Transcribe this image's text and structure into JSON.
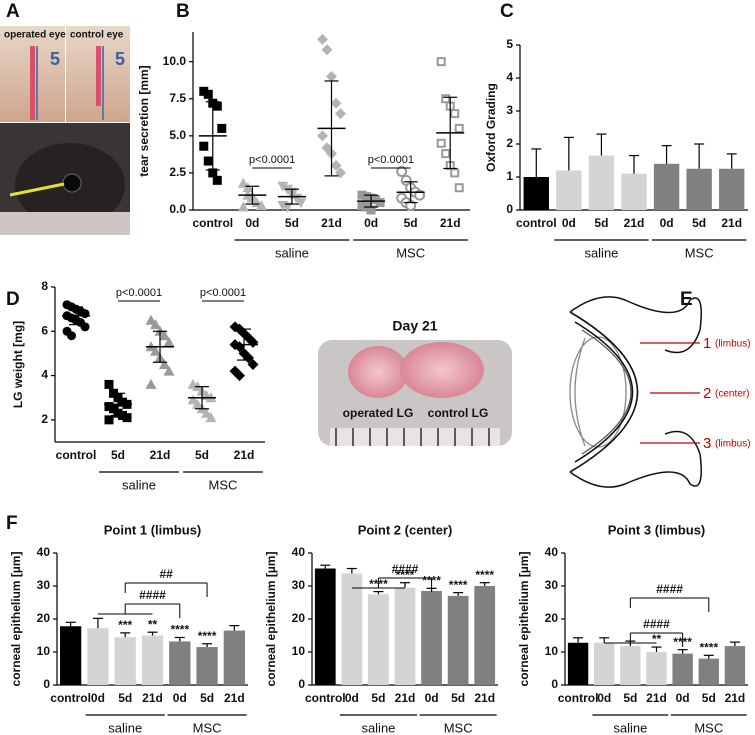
{
  "panel_labels": [
    "A",
    "B",
    "C",
    "D",
    "E",
    "F"
  ],
  "photo_a": {
    "labels": [
      "operated eye",
      "control eye"
    ],
    "strip_mark": "5"
  },
  "photo_d": {
    "title": "Day 21",
    "labels": [
      "operated LG",
      "control LG"
    ]
  },
  "diagram_e": {
    "points": [
      {
        "number": "1",
        "label": "(limbus)"
      },
      {
        "number": "2",
        "label": "(center)"
      },
      {
        "number": "3",
        "label": "(limbus)"
      }
    ]
  },
  "chart_data": [
    {
      "type": "scatter",
      "ylabel": "tear secretion [mm]",
      "categories": [
        "control",
        "0d",
        "5d",
        "21d",
        "0d",
        "5d",
        "21d"
      ],
      "group_labels": [
        "saline",
        "MSC"
      ],
      "ylim": [
        0,
        12
      ],
      "yticks": [
        {
          "value": 0,
          "label": "0.0"
        },
        2.5,
        {
          "value": 5,
          "label": "5.0"
        },
        7.5,
        {
          "value": 10,
          "label": "10.0"
        }
      ],
      "markers": [
        "square",
        "triangle",
        "triangle-down",
        "diamond",
        "square",
        "open-circle",
        "open-square"
      ],
      "colors": [
        "#000000",
        "#b4b4b4",
        "#b4b4b4",
        "#b4b4b4",
        "#999999",
        "#999999",
        "#999999"
      ],
      "points": [
        [
          8.0,
          7.8,
          7.2,
          7.0,
          5.5,
          4.3,
          3.3,
          2.5,
          2.0
        ],
        [
          1.8,
          1.0,
          0.8,
          0.5,
          0.3,
          0.2,
          1.5,
          0.9
        ],
        [
          1.6,
          1.4,
          1.0,
          0.8,
          0.5,
          0.3,
          0.2,
          1.2
        ],
        [
          11.5,
          10.8,
          9.0,
          7.2,
          6.5,
          5.0,
          4.2,
          3.8,
          3.0,
          2.5
        ],
        [
          1.0,
          0.9,
          0.8,
          0.7,
          0.5,
          0.3,
          0.2,
          0
        ],
        [
          2.6,
          2.0,
          1.5,
          1.2,
          1.0,
          0.8,
          0.5,
          0.3
        ],
        [
          10.0,
          7.5,
          7.0,
          6.5,
          5.5,
          4.5,
          3.8,
          3.0,
          2.5,
          1.5
        ]
      ],
      "means": [
        5.0,
        1.0,
        0.9,
        5.5,
        0.6,
        1.2,
        5.2
      ],
      "sd": [
        2.3,
        0.6,
        0.5,
        3.2,
        0.4,
        0.7,
        2.4
      ],
      "annotations": [
        "p<0.0001",
        "p<0.0001"
      ]
    },
    {
      "type": "bar",
      "ylabel": "Oxford Grading",
      "categories": [
        "control",
        "0d",
        "5d",
        "21d",
        "0d",
        "5d",
        "21d"
      ],
      "group_labels": [
        "saline",
        "MSC"
      ],
      "ylim": [
        0,
        5
      ],
      "yticks": [
        0,
        1,
        2,
        3,
        4,
        5
      ],
      "colors": [
        "#000000",
        "#d4d4d4",
        "#d4d4d4",
        "#d4d4d4",
        "#808080",
        "#808080",
        "#808080"
      ],
      "values": [
        1.0,
        1.2,
        1.65,
        1.1,
        1.4,
        1.25,
        1.25
      ],
      "errors": [
        0.85,
        1.0,
        0.65,
        0.55,
        0.55,
        0.75,
        0.45
      ]
    },
    {
      "type": "scatter",
      "ylabel": "LG weight [mg]",
      "categories": [
        "control",
        "5d",
        "21d",
        "5d",
        "21d"
      ],
      "group_labels": [
        "saline",
        "MSC"
      ],
      "ylim": [
        1,
        8
      ],
      "yticks": [
        2,
        4,
        6,
        8
      ],
      "markers": [
        "circle",
        "square",
        "triangle",
        "triangle",
        "diamond"
      ],
      "colors": [
        "#000000",
        "#000000",
        "#999999",
        "#b4b4b4",
        "#000000"
      ],
      "points": [
        [
          7.2,
          7.1,
          7.0,
          6.9,
          6.8,
          6.7,
          6.6,
          6.5,
          6.4,
          6.2,
          6.0,
          5.8
        ],
        [
          3.6,
          3.2,
          3.0,
          2.8,
          2.7,
          2.6,
          2.5,
          2.3,
          2.2,
          2.1,
          2.0
        ],
        [
          6.5,
          6.3,
          6.0,
          5.8,
          5.5,
          5.3,
          5.1,
          4.8,
          4.5,
          4.2,
          3.6
        ],
        [
          3.6,
          3.5,
          3.3,
          3.1,
          3.0,
          2.9,
          2.7,
          2.5,
          2.3,
          2.1
        ],
        [
          6.2,
          6.1,
          5.9,
          5.7,
          5.5,
          5.4,
          5.3,
          5.0,
          4.8,
          4.5,
          4.2,
          4.0
        ]
      ],
      "means": [
        6.7,
        2.7,
        5.3,
        3.0,
        5.4
      ],
      "sd": [
        0.4,
        0.5,
        0.7,
        0.5,
        0.7
      ],
      "annotations": [
        "p<0.0001",
        "p<0.0001"
      ]
    },
    {
      "type": "bar",
      "title": "Point 1 (limbus)",
      "ylabel": "corneal epithelium [µm]",
      "categories": [
        "control",
        "0d",
        "5d",
        "21d",
        "0d",
        "5d",
        "21d"
      ],
      "group_labels": [
        "saline",
        "MSC"
      ],
      "ylim": [
        0,
        40
      ],
      "yticks": [
        0,
        10,
        20,
        30,
        40
      ],
      "colors": [
        "#000000",
        "#d4d4d4",
        "#d4d4d4",
        "#d4d4d4",
        "#808080",
        "#808080",
        "#808080"
      ],
      "values": [
        17.8,
        17.2,
        14.5,
        15.0,
        13.2,
        11.5,
        16.5
      ],
      "errors": [
        1.2,
        3.0,
        1.3,
        1.0,
        1.2,
        1.0,
        1.5
      ],
      "significance": [
        null,
        null,
        "***",
        "**",
        "****",
        "****",
        null
      ],
      "brackets": [
        "####",
        "##"
      ]
    },
    {
      "type": "bar",
      "title": "Point 2 (center)",
      "ylabel": "corneal epithelium [µm]",
      "categories": [
        "control",
        "0d",
        "5d",
        "21d",
        "0d",
        "5d",
        "21d"
      ],
      "group_labels": [
        "saline",
        "MSC"
      ],
      "ylim": [
        0,
        40
      ],
      "yticks": [
        0,
        10,
        20,
        30,
        40
      ],
      "colors": [
        "#000000",
        "#d4d4d4",
        "#d4d4d4",
        "#d4d4d4",
        "#808080",
        "#808080",
        "#808080"
      ],
      "values": [
        35.3,
        33.8,
        27.5,
        29.5,
        28.5,
        27.0,
        30.0
      ],
      "errors": [
        1.0,
        1.5,
        0.8,
        1.5,
        0.8,
        1.0,
        1.0
      ],
      "significance": [
        null,
        null,
        "****",
        "****",
        "****",
        "****",
        "****"
      ],
      "brackets": [
        "####"
      ]
    },
    {
      "type": "bar",
      "title": "Point 3 (limbus)",
      "ylabel": "corneal epithelium [µm]",
      "categories": [
        "control",
        "0d",
        "5d",
        "21d",
        "0d",
        "5d",
        "21d"
      ],
      "group_labels": [
        "saline",
        "MSC"
      ],
      "ylim": [
        0,
        40
      ],
      "yticks": [
        0,
        10,
        20,
        30,
        40
      ],
      "colors": [
        "#000000",
        "#d4d4d4",
        "#d4d4d4",
        "#d4d4d4",
        "#808080",
        "#808080",
        "#808080"
      ],
      "values": [
        12.8,
        12.8,
        11.8,
        10.0,
        9.5,
        8.0,
        11.8
      ],
      "errors": [
        1.5,
        1.5,
        1.5,
        1.5,
        1.2,
        1.0,
        1.2
      ],
      "significance": [
        null,
        null,
        null,
        "**",
        "****",
        "****",
        null
      ],
      "brackets": [
        "####",
        "####"
      ]
    }
  ]
}
